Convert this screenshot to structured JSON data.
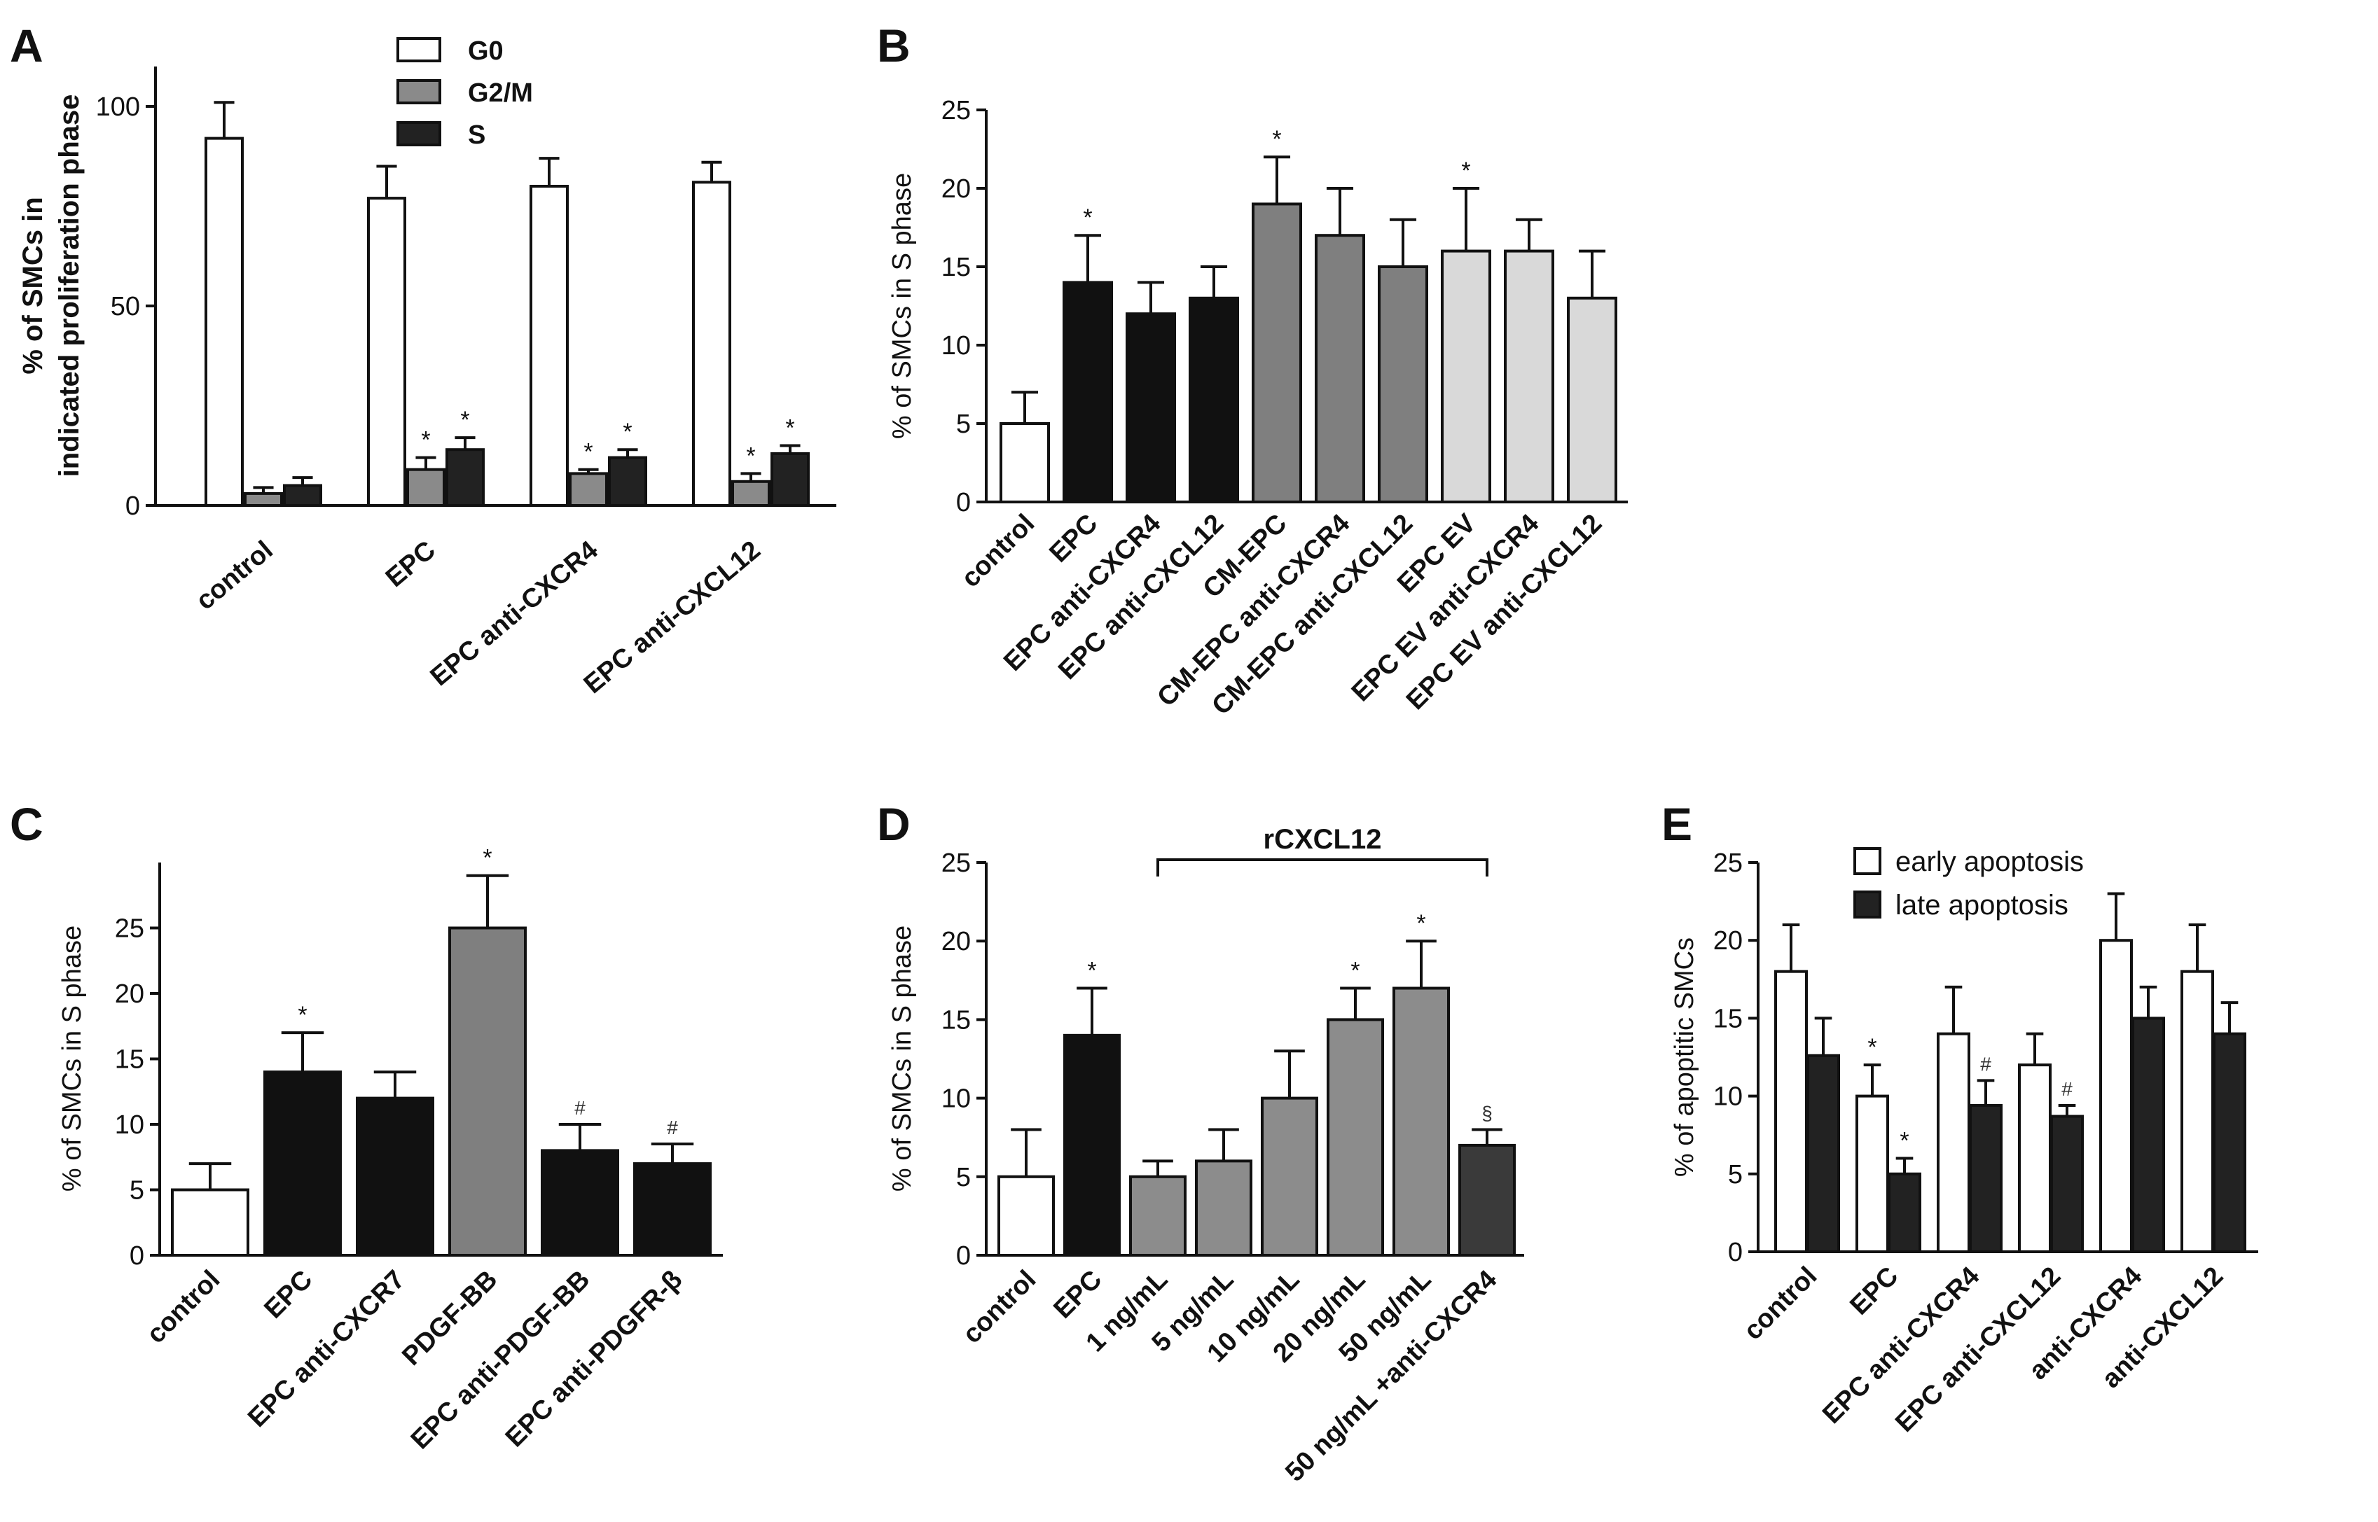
{
  "chart_data": [
    {
      "panel": "A",
      "type": "bar",
      "ylabel_line1": "% of SMCs in",
      "ylabel_line2": "indicated proliferation phase",
      "ylim": [
        0,
        110
      ],
      "yticks": [
        0,
        50,
        100
      ],
      "categories": [
        "control",
        "EPC",
        "EPC anti-CXCR4",
        "EPC anti-CXCL12"
      ],
      "legend": [
        "G0",
        "G2/M",
        "S"
      ],
      "colors": [
        "#ffffff",
        "#8a8a8a",
        "#222222"
      ],
      "series": [
        {
          "name": "G0",
          "values": [
            92,
            77,
            80,
            81
          ],
          "errors": [
            9,
            8,
            7,
            5
          ],
          "marks": [
            "",
            "",
            "",
            ""
          ]
        },
        {
          "name": "G2/M",
          "values": [
            3,
            9,
            8,
            6
          ],
          "errors": [
            1.5,
            3,
            1,
            2
          ],
          "marks": [
            "",
            "*",
            "*",
            "*"
          ]
        },
        {
          "name": "S",
          "values": [
            5,
            14,
            12,
            13
          ],
          "errors": [
            2,
            3,
            2,
            2
          ],
          "marks": [
            "",
            "*",
            "*",
            "*"
          ]
        }
      ]
    },
    {
      "panel": "B",
      "type": "bar",
      "ylabel": "% of SMCs in S phase",
      "ylim": [
        0,
        25
      ],
      "yticks": [
        0,
        5,
        10,
        15,
        20,
        25
      ],
      "categories": [
        "control",
        "EPC",
        "EPC anti-CXCR4",
        "EPC anti-CXCL12",
        "CM-EPC",
        "CM-EPC anti-CXCR4",
        "CM-EPC anti-CXCL12",
        "EPC EV",
        "EPC EV anti-CXCR4",
        "EPC EV  anti-CXCL12"
      ],
      "values": [
        5,
        14,
        12,
        13,
        19,
        17,
        15,
        16,
        16,
        13
      ],
      "errors": [
        2,
        3,
        2,
        2,
        3,
        3,
        3,
        4,
        2,
        3
      ],
      "marks": [
        "",
        "*",
        "",
        "",
        "*",
        "",
        "",
        "*",
        "",
        ""
      ],
      "colors": [
        "#ffffff",
        "#111111",
        "#111111",
        "#111111",
        "#7f7f7f",
        "#7f7f7f",
        "#7f7f7f",
        "#d9d9d9",
        "#d9d9d9",
        "#d9d9d9"
      ]
    },
    {
      "panel": "C",
      "type": "bar",
      "ylabel": "% of SMCs in S phase",
      "ylim": [
        0,
        30
      ],
      "yticks": [
        0,
        5,
        10,
        15,
        20,
        25
      ],
      "categories": [
        "control",
        "EPC",
        "EPC anti-CXCR7",
        "PDGF-BB",
        "EPC anti-PDGF-BB",
        "EPC anti-PDGFR-β"
      ],
      "values": [
        5,
        14,
        12,
        25,
        8,
        7
      ],
      "errors": [
        2,
        3,
        2,
        4,
        2,
        1.5
      ],
      "marks": [
        "",
        "*",
        "",
        "*",
        "#",
        "#"
      ],
      "colors": [
        "#ffffff",
        "#111111",
        "#111111",
        "#7f7f7f",
        "#111111",
        "#111111"
      ]
    },
    {
      "panel": "D",
      "type": "bar",
      "ylabel": "% of SMCs in S phase",
      "ylim": [
        0,
        25
      ],
      "yticks": [
        0,
        5,
        10,
        15,
        20,
        25
      ],
      "bracket_label": "rCXCL12",
      "categories": [
        "control",
        "EPC",
        "1 ng/mL",
        "5 ng/mL",
        "10 ng/mL",
        "20 ng/mL",
        "50 ng/mL",
        "50 ng/mL +anti-CXCR4"
      ],
      "values": [
        5,
        14,
        5,
        6,
        10,
        15,
        17,
        7
      ],
      "errors": [
        3,
        3,
        1,
        2,
        3,
        2,
        3,
        1
      ],
      "marks": [
        "",
        "*",
        "",
        "",
        "",
        "*",
        "*",
        "§"
      ],
      "colors": [
        "#ffffff",
        "#111111",
        "#8c8c8c",
        "#8c8c8c",
        "#8c8c8c",
        "#8c8c8c",
        "#8c8c8c",
        "#3a3a3a"
      ]
    },
    {
      "panel": "E",
      "type": "bar",
      "ylabel": "% of apoptitic SMCs",
      "ylim": [
        0,
        25
      ],
      "yticks": [
        0,
        5,
        10,
        15,
        20,
        25
      ],
      "categories": [
        "control",
        "EPC",
        "EPC anti-CXCR4",
        "EPC anti-CXCL12",
        "anti-CXCR4",
        "anti-CXCL12"
      ],
      "legend": [
        "early apoptosis",
        "late apoptosis"
      ],
      "colors": [
        "#ffffff",
        "#222222"
      ],
      "series": [
        {
          "name": "early apoptosis",
          "values": [
            18,
            10,
            14,
            12,
            20,
            18
          ],
          "errors": [
            3,
            2,
            3,
            2,
            3,
            3
          ],
          "marks": [
            "",
            "*",
            "",
            "",
            "",
            ""
          ]
        },
        {
          "name": "late apoptosis",
          "values": [
            12.6,
            5,
            9.4,
            8.7,
            15,
            14
          ],
          "errors": [
            2.4,
            1,
            1.6,
            0.7,
            2,
            2
          ],
          "marks": [
            "",
            "*",
            "#",
            "#",
            "",
            ""
          ]
        }
      ]
    }
  ]
}
